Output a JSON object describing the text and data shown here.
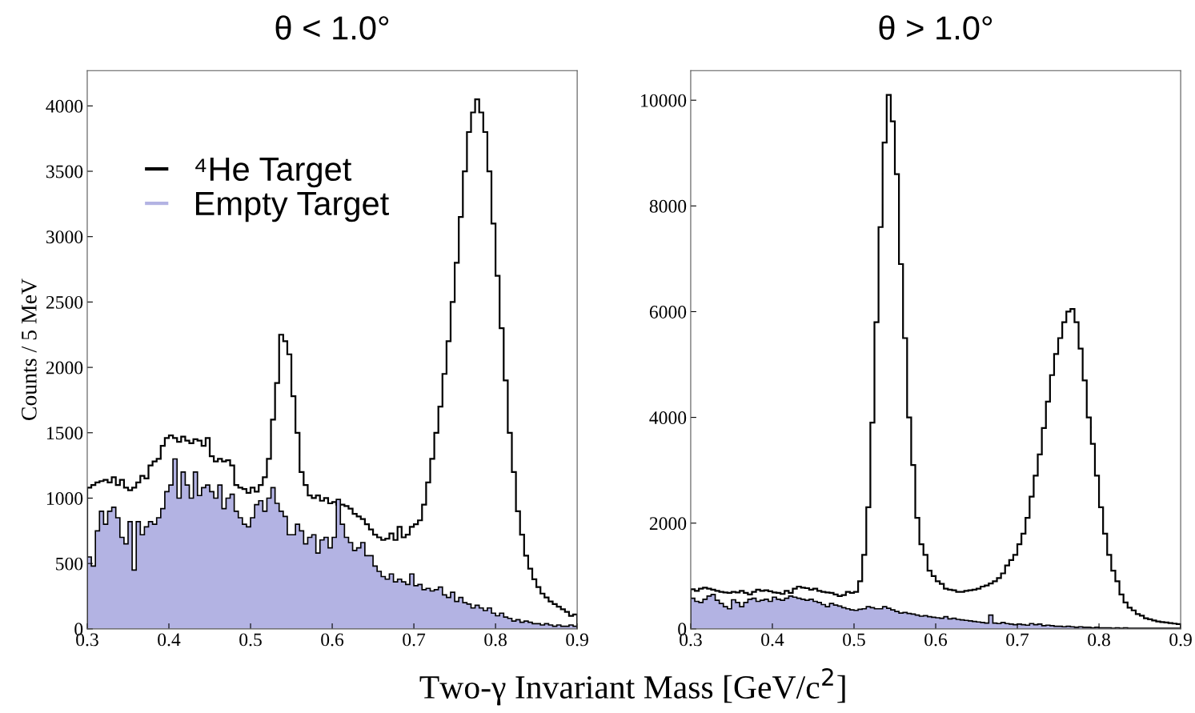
{
  "chart_data": [
    {
      "type": "histogram",
      "title": "θ < 1.0°",
      "xlabel": "Two-γ Invariant Mass [GeV/c$^{2}$]",
      "ylabel": "Counts / 5 MeV",
      "bins": [
        0.3,
        0.305,
        0.31,
        0.315,
        0.32,
        0.325,
        0.33,
        0.335,
        0.34,
        0.345,
        0.35,
        0.355,
        0.36,
        0.365,
        0.37,
        0.375,
        0.38,
        0.385,
        0.39,
        0.395,
        0.4,
        0.405,
        0.41,
        0.415,
        0.42,
        0.425,
        0.43,
        0.435,
        0.44,
        0.445,
        0.45,
        0.455,
        0.46,
        0.465,
        0.47,
        0.475,
        0.48,
        0.485,
        0.49,
        0.495,
        0.5,
        0.505,
        0.51,
        0.515,
        0.52,
        0.525,
        0.53,
        0.535,
        0.54,
        0.545,
        0.55,
        0.555,
        0.56,
        0.565,
        0.57,
        0.575,
        0.58,
        0.585,
        0.59,
        0.595,
        0.6,
        0.605,
        0.61,
        0.615,
        0.62,
        0.625,
        0.63,
        0.635,
        0.64,
        0.645,
        0.65,
        0.655,
        0.66,
        0.665,
        0.67,
        0.675,
        0.68,
        0.685,
        0.69,
        0.695,
        0.7,
        0.705,
        0.71,
        0.715,
        0.72,
        0.725,
        0.73,
        0.735,
        0.74,
        0.745,
        0.75,
        0.755,
        0.76,
        0.765,
        0.77,
        0.775,
        0.78,
        0.785,
        0.79,
        0.795,
        0.8,
        0.805,
        0.81,
        0.815,
        0.82,
        0.825,
        0.83,
        0.835,
        0.84,
        0.845,
        0.85,
        0.855,
        0.86,
        0.865,
        0.87,
        0.875,
        0.88,
        0.885,
        0.89,
        0.895,
        0.9
      ],
      "xlim": [
        0.3,
        0.9
      ],
      "xticks": [
        0.3,
        0.4,
        0.5,
        0.6,
        0.7,
        0.8,
        0.9
      ],
      "ylim": [
        0,
        4270
      ],
      "yticks": [
        0,
        500,
        1000,
        1500,
        2000,
        2500,
        3000,
        3500,
        4000
      ],
      "legend": "top left",
      "grid": false,
      "series": [
        {
          "name": "⁴He Target",
          "color": "#000000",
          "values": [
            1080,
            1100,
            1120,
            1130,
            1140,
            1120,
            1160,
            1100,
            1140,
            1080,
            1060,
            1080,
            1120,
            1170,
            1150,
            1250,
            1280,
            1300,
            1400,
            1460,
            1480,
            1460,
            1430,
            1470,
            1440,
            1420,
            1450,
            1440,
            1400,
            1460,
            1320,
            1280,
            1300,
            1280,
            1290,
            1250,
            1100,
            1080,
            1070,
            1040,
            1080,
            1050,
            1100,
            1160,
            1300,
            1600,
            1880,
            2250,
            2200,
            2100,
            1780,
            1500,
            1200,
            1100,
            1020,
            1000,
            1020,
            980,
            1000,
            960,
            970,
            950,
            950,
            940,
            920,
            880,
            860,
            840,
            800,
            760,
            720,
            700,
            680,
            690,
            730,
            680,
            780,
            700,
            720,
            780,
            800,
            830,
            950,
            1120,
            1300,
            1500,
            1700,
            1950,
            2200,
            2500,
            2800,
            3150,
            3500,
            3800,
            3950,
            4050,
            3950,
            3800,
            3500,
            3100,
            2700,
            2300,
            1900,
            1500,
            1200,
            900,
            720,
            560,
            460,
            380,
            320,
            270,
            240,
            210,
            190,
            170,
            150,
            130,
            100,
            110
          ]
        },
        {
          "name": "Empty Target",
          "color": "#b3b3e3",
          "values": [
            550,
            480,
            750,
            900,
            800,
            900,
            930,
            850,
            700,
            650,
            820,
            450,
            820,
            720,
            780,
            820,
            800,
            850,
            920,
            1050,
            1100,
            1300,
            1000,
            1200,
            1100,
            1000,
            1200,
            1020,
            1080,
            1100,
            1050,
            1000,
            1100,
            920,
            1000,
            1030,
            900,
            850,
            800,
            780,
            850,
            950,
            980,
            900,
            1000,
            1080,
            960,
            900,
            860,
            720,
            720,
            800,
            750,
            650,
            700,
            720,
            580,
            680,
            700,
            620,
            700,
            990,
            800,
            700,
            660,
            600,
            620,
            660,
            560,
            560,
            480,
            440,
            400,
            380,
            420,
            360,
            380,
            360,
            340,
            420,
            330,
            340,
            300,
            310,
            290,
            300,
            320,
            260,
            240,
            280,
            210,
            240,
            200,
            190,
            160,
            180,
            160,
            140,
            160,
            120,
            100,
            120,
            90,
            80,
            60,
            70,
            50,
            60,
            50,
            40,
            40,
            30,
            40,
            30,
            20,
            30,
            20,
            20,
            30,
            20
          ]
        }
      ]
    },
    {
      "type": "histogram",
      "title": "θ > 1.0°",
      "bins": [
        0.3,
        0.305,
        0.31,
        0.315,
        0.32,
        0.325,
        0.33,
        0.335,
        0.34,
        0.345,
        0.35,
        0.355,
        0.36,
        0.365,
        0.37,
        0.375,
        0.38,
        0.385,
        0.39,
        0.395,
        0.4,
        0.405,
        0.41,
        0.415,
        0.42,
        0.425,
        0.43,
        0.435,
        0.44,
        0.445,
        0.45,
        0.455,
        0.46,
        0.465,
        0.47,
        0.475,
        0.48,
        0.485,
        0.49,
        0.495,
        0.5,
        0.505,
        0.51,
        0.515,
        0.52,
        0.525,
        0.53,
        0.535,
        0.54,
        0.545,
        0.55,
        0.555,
        0.56,
        0.565,
        0.57,
        0.575,
        0.58,
        0.585,
        0.59,
        0.595,
        0.6,
        0.605,
        0.61,
        0.615,
        0.62,
        0.625,
        0.63,
        0.635,
        0.64,
        0.645,
        0.65,
        0.655,
        0.66,
        0.665,
        0.67,
        0.675,
        0.68,
        0.685,
        0.69,
        0.695,
        0.7,
        0.705,
        0.71,
        0.715,
        0.72,
        0.725,
        0.73,
        0.735,
        0.74,
        0.745,
        0.75,
        0.755,
        0.76,
        0.765,
        0.77,
        0.775,
        0.78,
        0.785,
        0.79,
        0.795,
        0.8,
        0.805,
        0.81,
        0.815,
        0.82,
        0.825,
        0.83,
        0.835,
        0.84,
        0.845,
        0.85,
        0.855,
        0.86,
        0.865,
        0.87,
        0.875,
        0.88,
        0.885,
        0.89,
        0.895,
        0.9
      ],
      "xlim": [
        0.3,
        0.9
      ],
      "xticks": [
        0.3,
        0.4,
        0.5,
        0.6,
        0.7,
        0.8,
        0.9
      ],
      "ylim": [
        0,
        10560
      ],
      "yticks": [
        0,
        2000,
        4000,
        6000,
        8000,
        10000
      ],
      "grid": false,
      "series": [
        {
          "color": "#000000",
          "values": [
            750,
            720,
            760,
            780,
            760,
            740,
            720,
            700,
            690,
            680,
            700,
            690,
            720,
            680,
            650,
            700,
            740,
            720,
            730,
            710,
            690,
            680,
            660,
            720,
            680,
            760,
            800,
            780,
            770,
            740,
            760,
            720,
            700,
            690,
            680,
            650,
            620,
            640,
            700,
            680,
            700,
            900,
            1400,
            2300,
            3900,
            5800,
            7600,
            9200,
            10100,
            9600,
            8600,
            6900,
            5500,
            4000,
            3100,
            2100,
            1600,
            1400,
            1100,
            1000,
            900,
            850,
            760,
            740,
            730,
            700,
            700,
            720,
            730,
            740,
            760,
            800,
            820,
            860,
            900,
            960,
            1050,
            1200,
            1300,
            1400,
            1600,
            1800,
            2100,
            2500,
            2900,
            3300,
            3800,
            4300,
            4800,
            5200,
            5500,
            5800,
            6000,
            6050,
            5800,
            5300,
            4700,
            4000,
            3500,
            2900,
            2300,
            1800,
            1400,
            1100,
            900,
            650,
            500,
            400,
            350,
            280,
            250,
            200,
            180,
            160,
            140,
            130,
            120,
            110,
            100,
            90
          ]
        },
        {
          "color": "#b3b3e3",
          "values": [
            580,
            520,
            500,
            560,
            620,
            650,
            540,
            480,
            420,
            380,
            550,
            500,
            420,
            500,
            560,
            580,
            520,
            540,
            560,
            520,
            600,
            560,
            540,
            580,
            620,
            600,
            580,
            560,
            540,
            560,
            520,
            500,
            460,
            420,
            480,
            450,
            430,
            400,
            380,
            360,
            350,
            370,
            380,
            420,
            400,
            380,
            380,
            420,
            390,
            360,
            330,
            300,
            310,
            290,
            280,
            260,
            240,
            250,
            230,
            220,
            210,
            200,
            230,
            190,
            200,
            180,
            170,
            160,
            150,
            140,
            130,
            120,
            110,
            260,
            110,
            100,
            120,
            100,
            90,
            80,
            90,
            80,
            70,
            100,
            80,
            90,
            60,
            70,
            60,
            50,
            50,
            40,
            50,
            40,
            30,
            40,
            30,
            30,
            20,
            30,
            20,
            20,
            20,
            10,
            20,
            10,
            20,
            10,
            10,
            10,
            10,
            10,
            10,
            10,
            10,
            10,
            10,
            10,
            10,
            10
          ]
        }
      ]
    }
  ]
}
